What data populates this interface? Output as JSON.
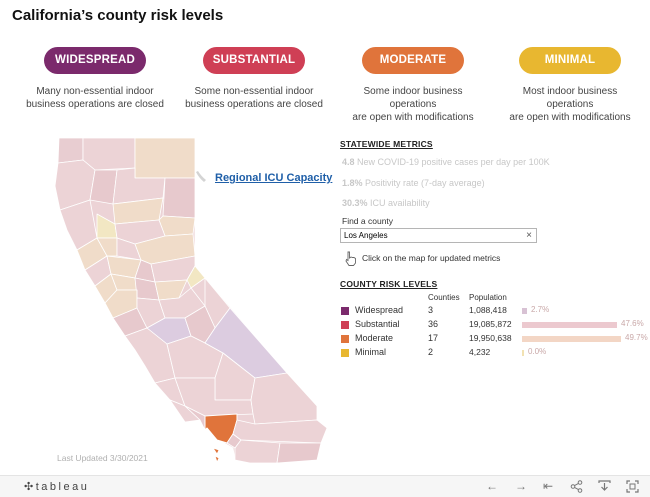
{
  "title": "California’s county risk levels",
  "tiers": [
    {
      "label": "WIDESPREAD",
      "color": "#7b2a6c",
      "desc1": "Many non-essential indoor",
      "desc2": "business operations are closed"
    },
    {
      "label": "SUBSTANTIAL",
      "color": "#cf3f55",
      "desc1": "Some non-essential indoor",
      "desc2": "business operations are closed"
    },
    {
      "label": "MODERATE",
      "color": "#e0743b",
      "desc1": "Some indoor business operations",
      "desc2": "are open with modifications"
    },
    {
      "label": "MINIMAL",
      "color": "#e8b730",
      "desc1": "Most indoor business operations",
      "desc2": "are open with modifications"
    }
  ],
  "map": {
    "last_updated": "Last Updated 3/30/2021",
    "icu_link": "Regional ICU Capacity",
    "colors": {
      "substantial_light": "#ecd3d6",
      "moderate_light": "#f0dcc9",
      "widespread_light": "#dccce0",
      "minimal_light": "#f2e7c3",
      "highlight": "#e0743b"
    }
  },
  "statewide": {
    "heading": "STATEWIDE METRICS",
    "metrics": [
      {
        "value": "4.8",
        "text": "New COVID-19 positive cases per day per 100K"
      },
      {
        "value": "1.8%",
        "text": "Positivity rate (7-day average)"
      },
      {
        "value": "30.3%",
        "text": "ICU availability"
      }
    ]
  },
  "find": {
    "label": "Find a county",
    "value": "Los Angeles",
    "clear": "×",
    "hint": "Click on the map for updated metrics"
  },
  "legend": {
    "heading": "COUNTY RISK LEVELS",
    "col_counties": "Counties",
    "col_population": "Population",
    "rows": [
      {
        "label": "Widespread",
        "color": "#7b2a6c",
        "counties": "3",
        "population": "1,088,418",
        "pct": "2.7%",
        "share": 2.7,
        "bar_color": "#d8c2d4"
      },
      {
        "label": "Substantial",
        "color": "#cf3f55",
        "counties": "36",
        "population": "19,085,872",
        "pct": "47.6%",
        "share": 47.6,
        "bar_color": "#ecc9cf"
      },
      {
        "label": "Moderate",
        "color": "#e0743b",
        "counties": "17",
        "population": "19,950,638",
        "pct": "49.7%",
        "share": 49.7,
        "bar_color": "#f3d6c5"
      },
      {
        "label": "Minimal",
        "color": "#e8b730",
        "counties": "2",
        "population": "4,232",
        "pct": "0.0%",
        "share": 0.0,
        "bar_color": "#f2e2b3"
      }
    ]
  },
  "footer": {
    "logo": "tableau",
    "icons": [
      "undo-icon",
      "redo-icon",
      "revert-icon",
      "share-icon",
      "download-icon",
      "fullscreen-icon"
    ]
  }
}
